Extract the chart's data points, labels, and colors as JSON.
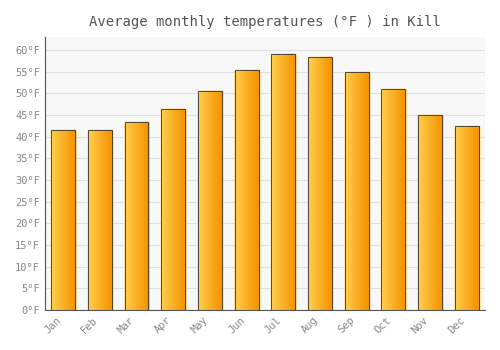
{
  "title": "Average monthly temperatures (°F ) in Kill",
  "months": [
    "Jan",
    "Feb",
    "Mar",
    "Apr",
    "May",
    "Jun",
    "Jul",
    "Aug",
    "Sep",
    "Oct",
    "Nov",
    "Dec"
  ],
  "values": [
    41.5,
    41.5,
    43.5,
    46.5,
    50.5,
    55.5,
    59.0,
    58.5,
    55.0,
    51.0,
    45.0,
    42.5
  ],
  "bar_color_left": "#FFD050",
  "bar_color_right": "#F59500",
  "bar_border_color": "#333333",
  "ylim": [
    0,
    63
  ],
  "yticks": [
    0,
    5,
    10,
    15,
    20,
    25,
    30,
    35,
    40,
    45,
    50,
    55,
    60
  ],
  "ytick_labels": [
    "0°F",
    "5°F",
    "10°F",
    "15°F",
    "20°F",
    "25°F",
    "30°F",
    "35°F",
    "40°F",
    "45°F",
    "50°F",
    "55°F",
    "60°F"
  ],
  "background_color": "#ffffff",
  "plot_bg_color": "#f8f8f8",
  "grid_color": "#e0e0e0",
  "title_fontsize": 10,
  "tick_fontsize": 7.5,
  "bar_width": 0.65
}
